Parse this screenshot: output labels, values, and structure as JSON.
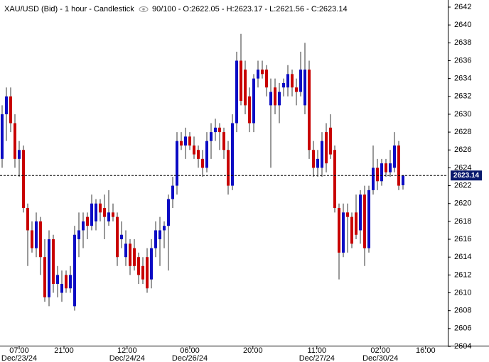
{
  "chart_data": {
    "type": "candlestick",
    "title": "XAU/USD (Bid) - 1 hour - Candlestick",
    "legend": "90/100 - O:2622.05 - H:2623.17 - L:2621.56 - C:2623.14",
    "up_color": "#0b0bc4",
    "down_color": "#c80000",
    "ylim": [
      2604,
      2642
    ],
    "yticks": [
      2604,
      2606,
      2608,
      2610,
      2612,
      2614,
      2616,
      2618,
      2620,
      2622,
      2624,
      2626,
      2628,
      2630,
      2632,
      2634,
      2636,
      2638,
      2640,
      2642
    ],
    "xlim": [
      -0.5,
      104.5
    ],
    "xticks": [
      {
        "value": 4,
        "label": "07:00"
      },
      {
        "value": 14.5,
        "label": "21:00"
      },
      {
        "value": 29.3,
        "label": "12:00"
      },
      {
        "value": 44,
        "label": "06:00"
      },
      {
        "value": 58.8,
        "label": "20:00"
      },
      {
        "value": 73.8,
        "label": "11:00"
      },
      {
        "value": 88.7,
        "label": "02:00"
      },
      {
        "value": 99.3,
        "label": "16:00"
      }
    ],
    "xdates": [
      {
        "value": 4,
        "label": "Dec/23/24"
      },
      {
        "value": 29.3,
        "label": "Dec/24/24"
      },
      {
        "value": 44,
        "label": "Dec/26/24"
      },
      {
        "value": 73.8,
        "label": "Dec/27/24"
      },
      {
        "value": 88.7,
        "label": "Dec/30/24"
      }
    ],
    "last_price": 2623.14,
    "open": [
      2625,
      2630,
      2632,
      2629,
      2625,
      2626,
      2619.5,
      2617,
      2615,
      2618,
      2614,
      2609.5,
      2616,
      2611,
      2610,
      2612,
      2610.5,
      2608.5,
      2616,
      2617,
      2618.5,
      2617.5,
      2618,
      2620,
      2619.5,
      2618,
      2619,
      2618.5,
      2616,
      2614,
      2615.5,
      2615,
      2614,
      2613,
      2614,
      2611.5,
      2615,
      2616,
      2617,
      2617.5,
      2620.5,
      2622,
      2627,
      2626.5,
      2627.5,
      2626.5,
      2626,
      2625,
      2624,
      2627,
      2628,
      2628.5,
      2628,
      2626,
      2622,
      2629,
      2636,
      2635,
      2632,
      2629,
      2634,
      2635,
      2635,
      2631,
      2633,
      2631,
      2633,
      2633,
      2634.5,
      2633,
      2632.5,
      2631,
      2635,
      2626,
      2624,
      2624,
      2628,
      2628.5,
      2626,
      2619.5,
      2614.5,
      2619,
      2618.5,
      2619,
      2617,
      2621,
      2615,
      2621.5,
      2624,
      2622.5,
      2624.5,
      2623.5,
      2624,
      2626.5,
      2622.05
    ],
    "high": [
      2631,
      2633,
      2633,
      2630,
      2627,
      2626.5,
      2620,
      2618,
      2619,
      2618.5,
      2616,
      2617,
      2616.5,
      2613,
      2612.5,
      2612.5,
      2613,
      2617.5,
      2619,
      2619,
      2619,
      2621,
      2620.5,
      2620.5,
      2621,
      2621.5,
      2620,
      2619,
      2618,
      2617,
      2616,
      2616,
      2614.5,
      2614,
      2615,
      2616,
      2618,
      2618.5,
      2618,
      2621,
      2623,
      2628,
      2628,
      2628.5,
      2628,
      2627.5,
      2626.5,
      2626,
      2628,
      2629,
      2629.5,
      2629,
      2628.5,
      2627,
      2630,
      2637,
      2639,
      2636,
      2633,
      2634.5,
      2636,
      2636,
      2635.5,
      2634,
      2634,
      2633.5,
      2634,
      2635.5,
      2635,
      2634,
      2637,
      2638,
      2636,
      2627,
      2626,
      2628,
      2629,
      2630,
      2626.5,
      2620,
      2620,
      2620,
      2619,
      2621,
      2621.5,
      2622,
      2622,
      2626.5,
      2625,
      2625,
      2625,
      2626,
      2628,
      2627,
      2623.17
    ],
    "low": [
      2624,
      2627,
      2628,
      2624,
      2623,
      2619,
      2613,
      2614.5,
      2614,
      2612,
      2609,
      2608.5,
      2610,
      2609.5,
      2609,
      2610,
      2610,
      2608,
      2614,
      2615,
      2616,
      2617,
      2617,
      2618,
      2616,
      2617.5,
      2618,
      2613,
      2615,
      2613,
      2612,
      2612.5,
      2611,
      2611,
      2610,
      2610.5,
      2614,
      2613,
      2615,
      2612.5,
      2619.5,
      2621,
      2626,
      2625,
      2626,
      2625,
      2624,
      2623,
      2623.5,
      2625,
      2627,
      2626,
      2625,
      2621,
      2621.5,
      2628,
      2631,
      2630,
      2628,
      2628,
      2633,
      2634,
      2632,
      2624,
      2630,
      2629,
      2632,
      2632,
      2632,
      2631,
      2632,
      2630,
      2625,
      2623,
      2623,
      2623,
      2623.5,
      2625,
      2619,
      2611.5,
      2614,
      2614.5,
      2615,
      2616,
      2615.5,
      2613,
      2614.5,
      2621,
      2621.5,
      2622,
      2623,
      2623,
      2623.5,
      2621.5,
      2621.56
    ],
    "close": [
      2630,
      2632,
      2629,
      2625,
      2626,
      2619.5,
      2617,
      2615,
      2618,
      2614,
      2609.5,
      2616,
      2611,
      2612,
      2611,
      2610.5,
      2612,
      2616.5,
      2617,
      2618,
      2617.5,
      2620,
      2620,
      2619,
      2618.5,
      2619,
      2618.5,
      2614,
      2616.5,
      2615.5,
      2613,
      2613,
      2612,
      2611.5,
      2610.5,
      2615,
      2617,
      2617,
      2617.5,
      2620.5,
      2622,
      2627,
      2626.5,
      2627.5,
      2626.5,
      2625.5,
      2625,
      2624,
      2627,
      2628,
      2628.5,
      2628,
      2626,
      2622,
      2629,
      2636,
      2631.5,
      2631,
      2629,
      2634,
      2635,
      2634.5,
      2633,
      2632.5,
      2631,
      2632.5,
      2633.5,
      2634.5,
      2633,
      2632.5,
      2635,
      2635,
      2626,
      2624,
      2625,
      2627,
      2624.5,
      2625.5,
      2619.5,
      2614.5,
      2619,
      2618.5,
      2615.5,
      2616.5,
      2621,
      2615,
      2621.5,
      2624,
      2622.5,
      2624.5,
      2623.5,
      2624.5,
      2626.5,
      2622,
      2623.14
    ]
  }
}
